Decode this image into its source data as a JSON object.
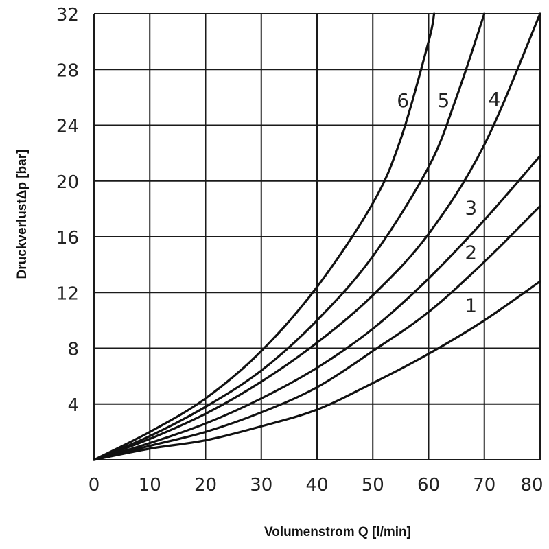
{
  "chart_data": {
    "type": "line",
    "xlabel": "Volumenstrom Q [l/min]",
    "ylabel": "DruckverlustΔp [bar]",
    "xlim": [
      0,
      80
    ],
    "ylim": [
      0,
      32
    ],
    "x_ticks": [
      "0",
      "10",
      "20",
      "30",
      "40",
      "50",
      "60",
      "70",
      "80"
    ],
    "y_ticks": [
      "4",
      "8",
      "12",
      "16",
      "20",
      "24",
      "28",
      "32"
    ],
    "grid": true,
    "series": [
      {
        "name": "1",
        "x": [
          0,
          10,
          20,
          30,
          40,
          50,
          60,
          70,
          80
        ],
        "y": [
          0,
          0.8,
          1.4,
          2.4,
          3.6,
          5.5,
          7.6,
          10.0,
          12.8
        ]
      },
      {
        "name": "2",
        "x": [
          0,
          10,
          20,
          30,
          40,
          50,
          60,
          70,
          80
        ],
        "y": [
          0,
          1.0,
          2.0,
          3.4,
          5.2,
          7.8,
          10.6,
          14.2,
          18.2
        ]
      },
      {
        "name": "3",
        "x": [
          0,
          10,
          20,
          30,
          40,
          50,
          60,
          70,
          80
        ],
        "y": [
          0,
          1.2,
          2.6,
          4.4,
          6.6,
          9.4,
          13.0,
          17.2,
          21.8
        ]
      },
      {
        "name": "4",
        "x": [
          0,
          10,
          20,
          30,
          40,
          50,
          60,
          70,
          80
        ],
        "y": [
          0,
          1.5,
          3.3,
          5.6,
          8.4,
          11.8,
          16.2,
          22.6,
          32.0
        ]
      },
      {
        "name": "5",
        "x": [
          0,
          10,
          20,
          30,
          40,
          50,
          60,
          65,
          70
        ],
        "y": [
          0,
          1.7,
          3.8,
          6.4,
          10.0,
          14.6,
          21.0,
          26.0,
          32.0
        ]
      },
      {
        "name": "6",
        "x": [
          0,
          10,
          20,
          30,
          40,
          50,
          55,
          60,
          61
        ],
        "y": [
          0,
          2.0,
          4.4,
          7.8,
          12.4,
          18.4,
          23.0,
          30.0,
          32.0
        ]
      }
    ],
    "curve_labels": [
      {
        "text": "6",
        "x": 55.4,
        "y": 25.3
      },
      {
        "text": "5",
        "x": 62.7,
        "y": 25.3
      },
      {
        "text": "4",
        "x": 71.8,
        "y": 25.4
      },
      {
        "text": "3",
        "x": 67.6,
        "y": 17.6
      },
      {
        "text": "2",
        "x": 67.6,
        "y": 14.4
      },
      {
        "text": "1",
        "x": 67.6,
        "y": 10.6
      }
    ]
  }
}
